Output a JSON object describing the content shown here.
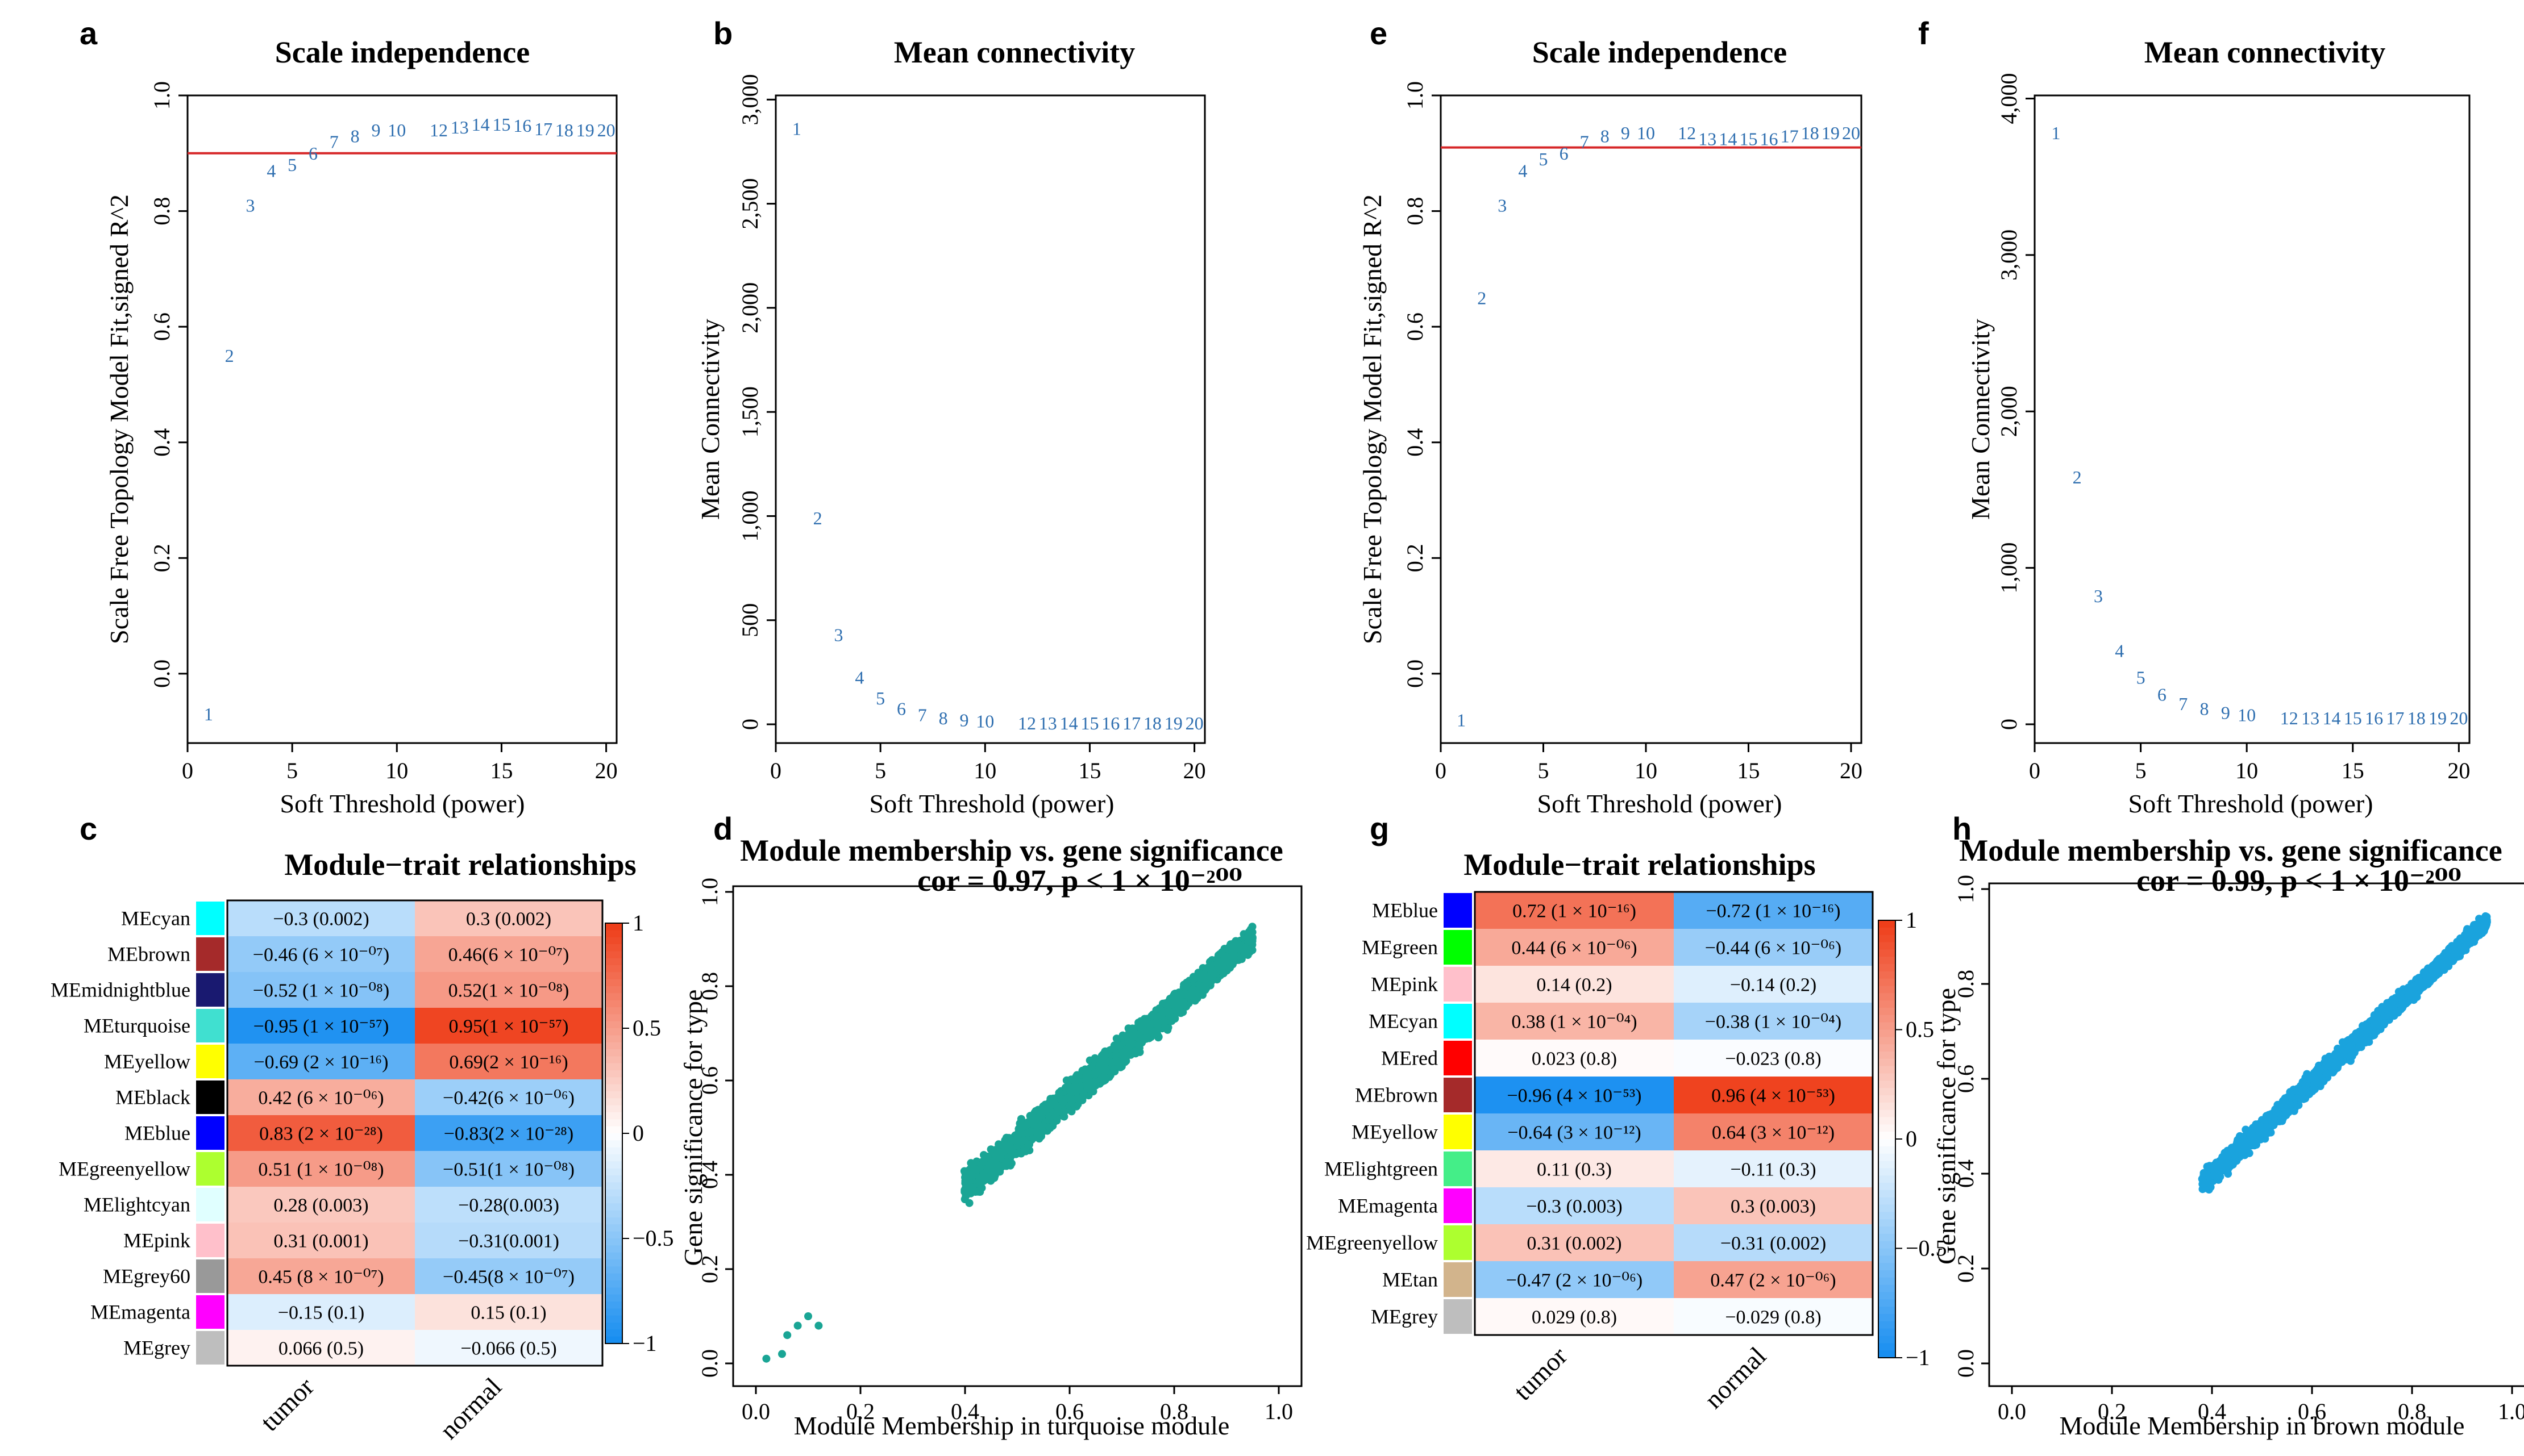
{
  "panels": {
    "a": "a",
    "b": "b",
    "c": "c",
    "d": "d",
    "e": "e",
    "f": "f",
    "g": "g",
    "h": "h"
  },
  "chart_data": [
    {
      "panel": "a",
      "type": "scatter",
      "title": "Scale independence",
      "xlabel": "Soft Threshold (power)",
      "ylabel": "Scale Free Topology Model Fit,signed R^2",
      "xlim": [
        0,
        20.5
      ],
      "ylim": [
        -0.12,
        1.0
      ],
      "xticks": [
        0,
        5,
        10,
        15,
        20
      ],
      "yticks": [
        0.0,
        0.2,
        0.4,
        0.6,
        0.8,
        1.0
      ],
      "ytick_labels": [
        "0.0",
        "0.2",
        "0.4",
        "0.6",
        "0.8",
        "1.0"
      ],
      "hline": 0.9,
      "hline_color": "#d62728",
      "points": [
        {
          "label": "1",
          "x": 1,
          "y": -0.07
        },
        {
          "label": "2",
          "x": 2,
          "y": 0.55
        },
        {
          "label": "3",
          "x": 3,
          "y": 0.81
        },
        {
          "label": "4",
          "x": 4,
          "y": 0.87
        },
        {
          "label": "5",
          "x": 5,
          "y": 0.88
        },
        {
          "label": "6",
          "x": 6,
          "y": 0.9
        },
        {
          "label": "7",
          "x": 7,
          "y": 0.92
        },
        {
          "label": "8",
          "x": 8,
          "y": 0.93
        },
        {
          "label": "9",
          "x": 9,
          "y": 0.94
        },
        {
          "label": "10",
          "x": 10,
          "y": 0.94
        },
        {
          "label": "12",
          "x": 12,
          "y": 0.94
        },
        {
          "label": "13",
          "x": 13,
          "y": 0.945
        },
        {
          "label": "14",
          "x": 14,
          "y": 0.95
        },
        {
          "label": "15",
          "x": 15,
          "y": 0.95
        },
        {
          "label": "16",
          "x": 16,
          "y": 0.948
        },
        {
          "label": "17",
          "x": 17,
          "y": 0.942
        },
        {
          "label": "18",
          "x": 18,
          "y": 0.94
        },
        {
          "label": "19",
          "x": 19,
          "y": 0.94
        },
        {
          "label": "20",
          "x": 20,
          "y": 0.94
        }
      ]
    },
    {
      "panel": "b",
      "type": "scatter",
      "title": "Mean connectivity",
      "xlabel": "Soft Threshold (power)",
      "ylabel": "Mean Connectivity",
      "xlim": [
        0,
        20.5
      ],
      "ylim": [
        -90,
        3020
      ],
      "xticks": [
        0,
        5,
        10,
        15,
        20
      ],
      "yticks": [
        0,
        500,
        1000,
        1500,
        2000,
        2500,
        3000
      ],
      "ytick_labels": [
        "0",
        "500",
        "1,000",
        "1,500",
        "2,000",
        "2,500",
        "3,000"
      ],
      "points": [
        {
          "label": "1",
          "x": 1,
          "y": 2860
        },
        {
          "label": "2",
          "x": 2,
          "y": 990
        },
        {
          "label": "3",
          "x": 3,
          "y": 430
        },
        {
          "label": "4",
          "x": 4,
          "y": 225
        },
        {
          "label": "5",
          "x": 5,
          "y": 125
        },
        {
          "label": "6",
          "x": 6,
          "y": 75
        },
        {
          "label": "7",
          "x": 7,
          "y": 45
        },
        {
          "label": "8",
          "x": 8,
          "y": 30
        },
        {
          "label": "9",
          "x": 9,
          "y": 20
        },
        {
          "label": "10",
          "x": 10,
          "y": 15
        },
        {
          "label": "12",
          "x": 12,
          "y": 5
        },
        {
          "label": "13",
          "x": 13,
          "y": 5
        },
        {
          "label": "14",
          "x": 14,
          "y": 5
        },
        {
          "label": "15",
          "x": 15,
          "y": 5
        },
        {
          "label": "16",
          "x": 16,
          "y": 5
        },
        {
          "label": "17",
          "x": 17,
          "y": 5
        },
        {
          "label": "18",
          "x": 18,
          "y": 5
        },
        {
          "label": "19",
          "x": 19,
          "y": 5
        },
        {
          "label": "20",
          "x": 20,
          "y": 5
        }
      ]
    },
    {
      "panel": "c",
      "type": "heatmap",
      "title": "Module−trait relationships",
      "columns": [
        "tumor",
        "normal"
      ],
      "colorbar_ticks": [
        "1",
        "0.5",
        "0",
        "−0.5",
        "−1"
      ],
      "rows": [
        {
          "module": "MEcyan",
          "color": "#00ffff",
          "cells": [
            {
              "cor": -0.3,
              "text": "−0.3 (0.002)"
            },
            {
              "cor": 0.3,
              "text": "0.3 (0.002)"
            }
          ]
        },
        {
          "module": "MEbrown",
          "color": "#a52a2a",
          "cells": [
            {
              "cor": -0.46,
              "text": "−0.46 (6 × 10⁻⁰⁷)"
            },
            {
              "cor": 0.46,
              "text": "0.46(6 × 10⁻⁰⁷)"
            }
          ]
        },
        {
          "module": "MEmidnightblue",
          "color": "#191970",
          "cells": [
            {
              "cor": -0.52,
              "text": "−0.52 (1 × 10⁻⁰⁸)"
            },
            {
              "cor": 0.52,
              "text": "0.52(1 × 10⁻⁰⁸)"
            }
          ]
        },
        {
          "module": "MEturquoise",
          "color": "#40e0d0",
          "cells": [
            {
              "cor": -0.95,
              "text": "−0.95 (1 × 10⁻⁵⁷)"
            },
            {
              "cor": 0.95,
              "text": "0.95(1 × 10⁻⁵⁷)"
            }
          ]
        },
        {
          "module": "MEyellow",
          "color": "#ffff00",
          "cells": [
            {
              "cor": -0.69,
              "text": "−0.69 (2 × 10⁻¹⁶)"
            },
            {
              "cor": 0.69,
              "text": "0.69(2 × 10⁻¹⁶)"
            }
          ]
        },
        {
          "module": "MEblack",
          "color": "#000000",
          "cells": [
            {
              "cor": 0.42,
              "text": "0.42 (6 × 10⁻⁰⁶)"
            },
            {
              "cor": -0.42,
              "text": "−0.42(6 × 10⁻⁰⁶)"
            }
          ]
        },
        {
          "module": "MEblue",
          "color": "#0000ff",
          "cells": [
            {
              "cor": 0.83,
              "text": "0.83 (2 × 10⁻²⁸)"
            },
            {
              "cor": -0.83,
              "text": "−0.83(2 × 10⁻²⁸)"
            }
          ]
        },
        {
          "module": "MEgreenyellow",
          "color": "#adff2f",
          "cells": [
            {
              "cor": 0.51,
              "text": "0.51 (1 × 10⁻⁰⁸)"
            },
            {
              "cor": -0.51,
              "text": "−0.51(1 × 10⁻⁰⁸)"
            }
          ]
        },
        {
          "module": "MElightcyan",
          "color": "#e0ffff",
          "cells": [
            {
              "cor": 0.28,
              "text": "0.28 (0.003)"
            },
            {
              "cor": -0.28,
              "text": "−0.28(0.003)"
            }
          ]
        },
        {
          "module": "MEpink",
          "color": "#ffc0cb",
          "cells": [
            {
              "cor": 0.31,
              "text": "0.31 (0.001)"
            },
            {
              "cor": -0.31,
              "text": "−0.31(0.001)"
            }
          ]
        },
        {
          "module": "MEgrey60",
          "color": "#999999",
          "cells": [
            {
              "cor": 0.45,
              "text": "0.45 (8 × 10⁻⁰⁷)"
            },
            {
              "cor": -0.45,
              "text": "−0.45(8 × 10⁻⁰⁷)"
            }
          ]
        },
        {
          "module": "MEmagenta",
          "color": "#ff00ff",
          "cells": [
            {
              "cor": -0.15,
              "text": "−0.15 (0.1)"
            },
            {
              "cor": 0.15,
              "text": "0.15 (0.1)"
            }
          ]
        },
        {
          "module": "MEgrey",
          "color": "#bebebe",
          "cells": [
            {
              "cor": 0.066,
              "text": "0.066 (0.5)"
            },
            {
              "cor": -0.066,
              "text": "−0.066 (0.5)"
            }
          ]
        }
      ]
    },
    {
      "panel": "d",
      "type": "scatter",
      "title": "Module membership vs. gene significance",
      "subtitle": "cor = 0.97, p < 1 × 10⁻²⁰⁰",
      "xlabel": "Module Membership in turquoise module",
      "ylabel": "Gene significance for type",
      "xlim": [
        0,
        1
      ],
      "ylim": [
        0,
        1
      ],
      "xticks": [
        0.0,
        0.2,
        0.4,
        0.6,
        0.8,
        1.0
      ],
      "yticks": [
        0.0,
        0.2,
        0.4,
        0.6,
        0.8,
        1.0
      ],
      "xtick_labels": [
        "0.0",
        "0.2",
        "0.4",
        "0.6",
        "0.8",
        "1.0"
      ],
      "ytick_labels": [
        "0.0",
        "0.2",
        "0.4",
        "0.6",
        "0.8",
        "1.0"
      ],
      "point_color": "#1aa595",
      "trend": {
        "x_start": 0.05,
        "x_end": 0.95,
        "slope": 0.96,
        "intercept": -0.01,
        "spread": 0.045
      },
      "outliers": [
        [
          0.02,
          0.01
        ],
        [
          0.05,
          0.02
        ],
        [
          0.06,
          0.06
        ],
        [
          0.08,
          0.08
        ],
        [
          0.1,
          0.1
        ],
        [
          0.12,
          0.08
        ]
      ]
    },
    {
      "panel": "e",
      "type": "scatter",
      "title": "Scale independence",
      "xlabel": "Soft Threshold (power)",
      "ylabel": "Scale Free Topology Model Fit,signed R^2",
      "xlim": [
        0,
        20.5
      ],
      "ylim": [
        -0.12,
        1.0
      ],
      "xticks": [
        0,
        5,
        10,
        15,
        20
      ],
      "yticks": [
        0.0,
        0.2,
        0.4,
        0.6,
        0.8,
        1.0
      ],
      "ytick_labels": [
        "0.0",
        "0.2",
        "0.4",
        "0.6",
        "0.8",
        "1.0"
      ],
      "hline": 0.91,
      "hline_color": "#d62728",
      "points": [
        {
          "label": "1",
          "x": 1,
          "y": -0.08
        },
        {
          "label": "2",
          "x": 2,
          "y": 0.65
        },
        {
          "label": "3",
          "x": 3,
          "y": 0.81
        },
        {
          "label": "4",
          "x": 4,
          "y": 0.87
        },
        {
          "label": "5",
          "x": 5,
          "y": 0.89
        },
        {
          "label": "6",
          "x": 6,
          "y": 0.9
        },
        {
          "label": "7",
          "x": 7,
          "y": 0.92
        },
        {
          "label": "8",
          "x": 8,
          "y": 0.93
        },
        {
          "label": "9",
          "x": 9,
          "y": 0.935
        },
        {
          "label": "10",
          "x": 10,
          "y": 0.935
        },
        {
          "label": "12",
          "x": 12,
          "y": 0.935
        },
        {
          "label": "13",
          "x": 13,
          "y": 0.925
        },
        {
          "label": "14",
          "x": 14,
          "y": 0.925
        },
        {
          "label": "15",
          "x": 15,
          "y": 0.925
        },
        {
          "label": "16",
          "x": 16,
          "y": 0.925
        },
        {
          "label": "17",
          "x": 17,
          "y": 0.93
        },
        {
          "label": "18",
          "x": 18,
          "y": 0.935
        },
        {
          "label": "19",
          "x": 19,
          "y": 0.935
        },
        {
          "label": "20",
          "x": 20,
          "y": 0.935
        }
      ]
    },
    {
      "panel": "f",
      "type": "scatter",
      "title": "Mean connectivity",
      "xlabel": "Soft Threshold (power)",
      "ylabel": "Mean Connectivity",
      "xlim": [
        0,
        20.5
      ],
      "ylim": [
        -120,
        4020
      ],
      "xticks": [
        0,
        5,
        10,
        15,
        20
      ],
      "yticks": [
        0,
        1000,
        2000,
        3000,
        4000
      ],
      "ytick_labels": [
        "0",
        "1,000",
        "2,000",
        "3,000",
        "4,000"
      ],
      "points": [
        {
          "label": "1",
          "x": 1,
          "y": 3780
        },
        {
          "label": "2",
          "x": 2,
          "y": 1580
        },
        {
          "label": "3",
          "x": 3,
          "y": 820
        },
        {
          "label": "4",
          "x": 4,
          "y": 470
        },
        {
          "label": "5",
          "x": 5,
          "y": 300
        },
        {
          "label": "6",
          "x": 6,
          "y": 190
        },
        {
          "label": "7",
          "x": 7,
          "y": 130
        },
        {
          "label": "8",
          "x": 8,
          "y": 100
        },
        {
          "label": "9",
          "x": 9,
          "y": 75
        },
        {
          "label": "10",
          "x": 10,
          "y": 60
        },
        {
          "label": "12",
          "x": 12,
          "y": 40
        },
        {
          "label": "13",
          "x": 13,
          "y": 40
        },
        {
          "label": "14",
          "x": 14,
          "y": 40
        },
        {
          "label": "15",
          "x": 15,
          "y": 40
        },
        {
          "label": "16",
          "x": 16,
          "y": 40
        },
        {
          "label": "17",
          "x": 17,
          "y": 40
        },
        {
          "label": "18",
          "x": 18,
          "y": 40
        },
        {
          "label": "19",
          "x": 19,
          "y": 40
        },
        {
          "label": "20",
          "x": 20,
          "y": 40
        }
      ]
    },
    {
      "panel": "g",
      "type": "heatmap",
      "title": "Module−trait relationships",
      "columns": [
        "tumor",
        "normal"
      ],
      "colorbar_ticks": [
        "1",
        "0.5",
        "0",
        "−0.5",
        "−1"
      ],
      "rows": [
        {
          "module": "MEblue",
          "color": "#0000ff",
          "cells": [
            {
              "cor": 0.72,
              "text": "0.72 (1 × 10⁻¹⁶)"
            },
            {
              "cor": -0.72,
              "text": "−0.72 (1 × 10⁻¹⁶)"
            }
          ]
        },
        {
          "module": "MEgreen",
          "color": "#00ff00",
          "cells": [
            {
              "cor": 0.44,
              "text": "0.44 (6 × 10⁻⁰⁶)"
            },
            {
              "cor": -0.44,
              "text": "−0.44 (6 × 10⁻⁰⁶)"
            }
          ]
        },
        {
          "module": "MEpink",
          "color": "#ffc0cb",
          "cells": [
            {
              "cor": 0.14,
              "text": "0.14 (0.2)"
            },
            {
              "cor": -0.14,
              "text": "−0.14 (0.2)"
            }
          ]
        },
        {
          "module": "MEcyan",
          "color": "#00ffff",
          "cells": [
            {
              "cor": 0.38,
              "text": "0.38 (1 × 10⁻⁰⁴)"
            },
            {
              "cor": -0.38,
              "text": "−0.38 (1 × 10⁻⁰⁴)"
            }
          ]
        },
        {
          "module": "MEred",
          "color": "#ff0000",
          "cells": [
            {
              "cor": 0.023,
              "text": "0.023 (0.8)"
            },
            {
              "cor": -0.023,
              "text": "−0.023 (0.8)"
            }
          ]
        },
        {
          "module": "MEbrown",
          "color": "#a52a2a",
          "cells": [
            {
              "cor": -0.96,
              "text": "−0.96 (4 × 10⁻⁵³)"
            },
            {
              "cor": 0.96,
              "text": "0.96 (4 × 10⁻⁵³)"
            }
          ]
        },
        {
          "module": "MEyellow",
          "color": "#ffff00",
          "cells": [
            {
              "cor": -0.64,
              "text": "−0.64 (3 × 10⁻¹²)"
            },
            {
              "cor": 0.64,
              "text": "0.64 (3 × 10⁻¹²)"
            }
          ]
        },
        {
          "module": "MElightgreen",
          "color": "#44ee88",
          "cells": [
            {
              "cor": 0.11,
              "text": "0.11 (0.3)"
            },
            {
              "cor": -0.11,
              "text": "−0.11 (0.3)"
            }
          ]
        },
        {
          "module": "MEmagenta",
          "color": "#ff00ff",
          "cells": [
            {
              "cor": -0.3,
              "text": "−0.3 (0.003)"
            },
            {
              "cor": 0.3,
              "text": "0.3 (0.003)"
            }
          ]
        },
        {
          "module": "MEgreenyellow",
          "color": "#adff2f",
          "cells": [
            {
              "cor": 0.31,
              "text": "0.31 (0.002)"
            },
            {
              "cor": -0.31,
              "text": "−0.31 (0.002)"
            }
          ]
        },
        {
          "module": "MEtan",
          "color": "#d2b48c",
          "cells": [
            {
              "cor": -0.47,
              "text": "−0.47 (2 × 10⁻⁰⁶)"
            },
            {
              "cor": 0.47,
              "text": "0.47 (2 × 10⁻⁰⁶)"
            }
          ]
        },
        {
          "module": "MEgrey",
          "color": "#bebebe",
          "cells": [
            {
              "cor": 0.029,
              "text": "0.029 (0.8)"
            },
            {
              "cor": -0.029,
              "text": "−0.029 (0.8)"
            }
          ]
        }
      ]
    },
    {
      "panel": "h",
      "type": "scatter",
      "title": "Module membership vs. gene significance",
      "subtitle": "cor = 0.99, p < 1 × 10⁻²⁰⁰",
      "xlabel": "Module Membership in brown module",
      "ylabel": "Gene significance for type",
      "xlim": [
        0,
        1
      ],
      "ylim": [
        0,
        1
      ],
      "xticks": [
        0.0,
        0.2,
        0.4,
        0.6,
        0.8,
        1.0
      ],
      "yticks": [
        0.0,
        0.2,
        0.4,
        0.6,
        0.8,
        1.0
      ],
      "xtick_labels": [
        "0.0",
        "0.2",
        "0.4",
        "0.6",
        "0.8",
        "1.0"
      ],
      "ytick_labels": [
        "0.0",
        "0.2",
        "0.4",
        "0.6",
        "0.8",
        "1.0"
      ],
      "point_color": "#1aa3dd",
      "trend": {
        "x_start": 0.02,
        "x_end": 0.95,
        "slope": 0.97,
        "intercept": 0.01,
        "spread": 0.03
      },
      "outliers": []
    }
  ]
}
